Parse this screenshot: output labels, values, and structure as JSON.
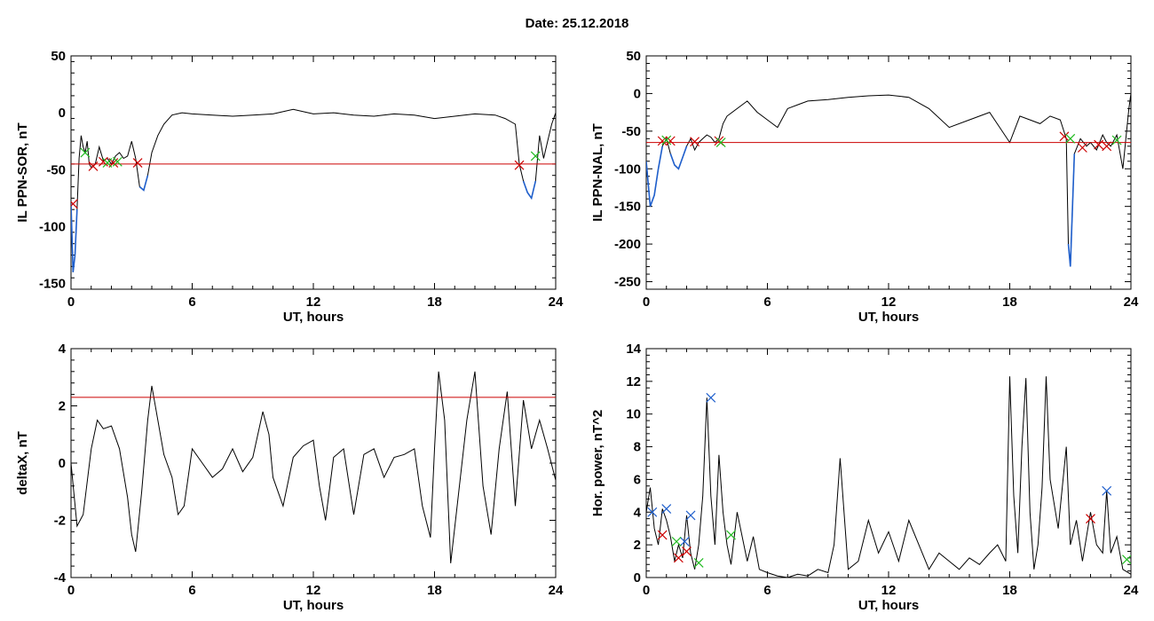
{
  "page_title": "Date:  25.12.2018",
  "chart_data": [
    {
      "type": "line",
      "id": "ppn_sor",
      "xlabel": "UT, hours",
      "ylabel": "IL PPN-SOR, nT",
      "xlim": [
        0,
        24
      ],
      "ylim": [
        -155,
        50
      ],
      "xticks": [
        0,
        6,
        12,
        18,
        24
      ],
      "yticks": [
        -150,
        -100,
        -50,
        0,
        50
      ],
      "threshold": -45,
      "threshold_color": "#cc0000",
      "line_color": "#000000",
      "highlight_color": "#1f5fcc",
      "series": [
        {
          "values_x": [
            0,
            0.1,
            0.2,
            0.3,
            0.4,
            0.5,
            0.6,
            0.7,
            0.8,
            0.9,
            1.0,
            1.2,
            1.4,
            1.6,
            1.8,
            2.0,
            2.2,
            2.4,
            2.6,
            2.8,
            3.0,
            3.2,
            3.4,
            3.6,
            3.8,
            4.0,
            4.3,
            4.6,
            5.0,
            5.5,
            6,
            7,
            8,
            9,
            10,
            11,
            12,
            13,
            14,
            15,
            16,
            17,
            18,
            19,
            20,
            21,
            21.5,
            22,
            22.2,
            22.4,
            22.6,
            22.8,
            23.0,
            23.2,
            23.4,
            23.6,
            23.8,
            24
          ],
          "values": [
            -80,
            -140,
            -125,
            -85,
            -40,
            -20,
            -30,
            -35,
            -25,
            -45,
            -48,
            -45,
            -30,
            -42,
            -40,
            -45,
            -38,
            -35,
            -40,
            -38,
            -25,
            -40,
            -65,
            -68,
            -55,
            -35,
            -20,
            -10,
            -2,
            0,
            -1,
            -2,
            -3,
            -2,
            -1,
            3,
            -1,
            0,
            -2,
            -3,
            -1,
            -2,
            -5,
            -3,
            -1,
            -2,
            -5,
            -10,
            -45,
            -60,
            -70,
            -75,
            -60,
            -20,
            -40,
            -25,
            -10,
            0
          ]
        }
      ],
      "markers": [
        {
          "x": 0.1,
          "y": -80,
          "color": "#cc0000"
        },
        {
          "x": 1.1,
          "y": -47,
          "color": "#cc0000"
        },
        {
          "x": 1.6,
          "y": -43,
          "color": "#cc0000"
        },
        {
          "x": 2.1,
          "y": -44,
          "color": "#cc0000"
        },
        {
          "x": 3.3,
          "y": -44,
          "color": "#cc0000"
        },
        {
          "x": 22.2,
          "y": -46,
          "color": "#cc0000"
        },
        {
          "x": 0.7,
          "y": -35,
          "color": "#22bb22"
        },
        {
          "x": 1.8,
          "y": -44,
          "color": "#22bb22"
        },
        {
          "x": 2.3,
          "y": -43,
          "color": "#22bb22"
        },
        {
          "x": 23.0,
          "y": -38,
          "color": "#22bb22"
        }
      ]
    },
    {
      "type": "line",
      "id": "ppn_nal",
      "xlabel": "UT, hours",
      "ylabel": "IL PPN-NAL, nT",
      "xlim": [
        0,
        24
      ],
      "ylim": [
        -260,
        50
      ],
      "xticks": [
        0,
        6,
        12,
        18,
        24
      ],
      "yticks": [
        -250,
        -200,
        -150,
        -100,
        -50,
        0,
        50
      ],
      "threshold": -65,
      "threshold_color": "#cc0000",
      "line_color": "#000000",
      "highlight_color": "#1f5fcc",
      "series": [
        {
          "values_x": [
            0,
            0.2,
            0.4,
            0.6,
            0.8,
            1.0,
            1.2,
            1.4,
            1.6,
            1.8,
            2.0,
            2.2,
            2.4,
            2.6,
            2.8,
            3.0,
            3.2,
            3.4,
            3.6,
            3.8,
            4.0,
            4.5,
            5.0,
            5.5,
            6.0,
            6.5,
            7.0,
            7.5,
            8,
            9,
            10,
            11,
            12,
            13,
            14,
            15,
            16,
            17,
            18,
            18.5,
            19,
            19.5,
            20,
            20.5,
            20.8,
            20.9,
            21.0,
            21.2,
            21.5,
            21.8,
            22.0,
            22.3,
            22.6,
            22.8,
            23.0,
            23.3,
            23.6,
            23.9,
            24
          ],
          "values": [
            -90,
            -150,
            -135,
            -100,
            -70,
            -60,
            -80,
            -95,
            -100,
            -85,
            -70,
            -60,
            -75,
            -65,
            -60,
            -55,
            -58,
            -65,
            -60,
            -40,
            -30,
            -20,
            -10,
            -25,
            -35,
            -45,
            -20,
            -15,
            -10,
            -8,
            -5,
            -3,
            -2,
            -5,
            -20,
            -45,
            -35,
            -25,
            -65,
            -30,
            -35,
            -40,
            -30,
            -35,
            -60,
            -200,
            -230,
            -80,
            -60,
            -70,
            -65,
            -75,
            -55,
            -65,
            -70,
            -55,
            -100,
            -20,
            0
          ]
        }
      ],
      "markers": [
        {
          "x": 0.8,
          "y": -63,
          "color": "#cc0000"
        },
        {
          "x": 1.2,
          "y": -63,
          "color": "#cc0000"
        },
        {
          "x": 2.4,
          "y": -64,
          "color": "#cc0000"
        },
        {
          "x": 3.6,
          "y": -63,
          "color": "#cc0000"
        },
        {
          "x": 20.7,
          "y": -57,
          "color": "#cc0000"
        },
        {
          "x": 21.6,
          "y": -72,
          "color": "#cc0000"
        },
        {
          "x": 22.4,
          "y": -68,
          "color": "#cc0000"
        },
        {
          "x": 22.8,
          "y": -70,
          "color": "#cc0000"
        },
        {
          "x": 1.0,
          "y": -62,
          "color": "#22bb22"
        },
        {
          "x": 3.7,
          "y": -65,
          "color": "#22bb22"
        },
        {
          "x": 21.0,
          "y": -60,
          "color": "#22bb22"
        },
        {
          "x": 23.3,
          "y": -62,
          "color": "#22bb22"
        }
      ]
    },
    {
      "type": "line",
      "id": "deltax",
      "xlabel": "UT, hours",
      "ylabel": "deltaX, nT",
      "xlim": [
        0,
        24
      ],
      "ylim": [
        -4,
        4
      ],
      "xticks": [
        0,
        6,
        12,
        18,
        24
      ],
      "yticks": [
        -4,
        -2,
        0,
        2,
        4
      ],
      "threshold": 2.3,
      "threshold_color": "#cc0000",
      "line_color": "#000000",
      "series": [
        {
          "values_x": [
            0,
            0.3,
            0.6,
            1.0,
            1.3,
            1.6,
            2.0,
            2.4,
            2.8,
            3.0,
            3.2,
            3.5,
            3.8,
            4.0,
            4.3,
            4.6,
            5.0,
            5.3,
            5.6,
            6.0,
            6.5,
            7.0,
            7.5,
            8.0,
            8.5,
            9.0,
            9.5,
            9.8,
            10.0,
            10.5,
            11.0,
            11.5,
            12.0,
            12.3,
            12.6,
            13.0,
            13.5,
            14.0,
            14.5,
            15.0,
            15.5,
            16.0,
            16.5,
            17.0,
            17.4,
            17.8,
            18.0,
            18.2,
            18.5,
            18.8,
            19.2,
            19.6,
            20.0,
            20.4,
            20.8,
            21.2,
            21.6,
            22.0,
            22.4,
            22.8,
            23.2,
            23.6,
            24
          ],
          "values": [
            0,
            -2.2,
            -1.8,
            0.5,
            1.5,
            1.2,
            1.3,
            0.5,
            -1.2,
            -2.5,
            -3.1,
            -1.0,
            1.5,
            2.7,
            1.5,
            0.3,
            -0.5,
            -1.8,
            -1.5,
            0.5,
            0,
            -0.5,
            -0.2,
            0.5,
            -0.3,
            0.2,
            1.8,
            1.0,
            -0.5,
            -1.5,
            0.2,
            0.6,
            0.8,
            -0.8,
            -2.0,
            0.2,
            0.5,
            -1.8,
            0.3,
            0.5,
            -0.5,
            0.2,
            0.3,
            0.5,
            -1.5,
            -2.6,
            0.5,
            3.2,
            1.5,
            -3.5,
            -1.0,
            1.5,
            3.2,
            -0.8,
            -2.5,
            0.5,
            2.5,
            -1.5,
            2.2,
            0.5,
            1.5,
            0.5,
            -0.6
          ]
        }
      ],
      "markers": []
    },
    {
      "type": "line",
      "id": "hor_power",
      "xlabel": "UT, hours",
      "ylabel": "Hor. power, nT^2",
      "xlim": [
        0,
        24
      ],
      "ylim": [
        0,
        14
      ],
      "xticks": [
        0,
        6,
        12,
        18,
        24
      ],
      "yticks": [
        0,
        2,
        4,
        6,
        8,
        10,
        12,
        14
      ],
      "threshold": null,
      "line_color": "#000000",
      "series": [
        {
          "values_x": [
            0,
            0.2,
            0.4,
            0.6,
            0.8,
            1.0,
            1.2,
            1.4,
            1.6,
            1.8,
            2.0,
            2.2,
            2.4,
            2.6,
            2.8,
            3.0,
            3.2,
            3.4,
            3.6,
            3.8,
            4.0,
            4.2,
            4.5,
            5.0,
            5.3,
            5.6,
            6.0,
            6.5,
            7.0,
            7.5,
            8.0,
            8.5,
            9.0,
            9.3,
            9.6,
            10.0,
            10.5,
            11.0,
            11.5,
            12.0,
            12.5,
            13.0,
            13.5,
            14.0,
            14.5,
            15.0,
            15.5,
            16.0,
            16.5,
            17.0,
            17.4,
            17.8,
            18.0,
            18.2,
            18.4,
            18.6,
            18.8,
            19.0,
            19.2,
            19.4,
            19.6,
            19.8,
            20.0,
            20.4,
            20.8,
            21.0,
            21.3,
            21.6,
            22.0,
            22.3,
            22.6,
            22.8,
            23.0,
            23.3,
            23.6,
            24
          ],
          "values": [
            4.0,
            5.5,
            3.0,
            2.0,
            4.2,
            3.5,
            2.5,
            1.0,
            2.0,
            1.2,
            3.8,
            1.5,
            0.5,
            2.0,
            5.0,
            11.0,
            5.0,
            2.0,
            7.5,
            4.0,
            2.0,
            0.8,
            4.0,
            1.0,
            2.5,
            0.5,
            0.3,
            0.1,
            0,
            0.2,
            0.1,
            0.5,
            0.3,
            2.0,
            7.3,
            0.5,
            1.0,
            3.5,
            1.5,
            2.8,
            1.0,
            3.5,
            2.0,
            0.5,
            1.5,
            1.0,
            0.5,
            1.2,
            0.8,
            1.5,
            2.0,
            1.0,
            12.3,
            5.0,
            1.5,
            8.0,
            12.2,
            4.0,
            0.5,
            2.0,
            5.5,
            12.3,
            6.0,
            3.0,
            8.0,
            2.0,
            3.5,
            1.0,
            4.0,
            2.0,
            1.5,
            5.3,
            1.5,
            2.5,
            0.5,
            0.2
          ]
        }
      ],
      "markers": [
        {
          "x": 0.3,
          "y": 4.0,
          "color": "#1f5fcc"
        },
        {
          "x": 1.0,
          "y": 4.2,
          "color": "#1f5fcc"
        },
        {
          "x": 1.9,
          "y": 2.2,
          "color": "#1f5fcc"
        },
        {
          "x": 2.2,
          "y": 3.8,
          "color": "#1f5fcc"
        },
        {
          "x": 3.2,
          "y": 11.0,
          "color": "#1f5fcc"
        },
        {
          "x": 22.8,
          "y": 5.3,
          "color": "#1f5fcc"
        },
        {
          "x": 0.8,
          "y": 2.6,
          "color": "#cc0000"
        },
        {
          "x": 1.6,
          "y": 1.2,
          "color": "#cc0000"
        },
        {
          "x": 2.0,
          "y": 1.6,
          "color": "#cc0000"
        },
        {
          "x": 22.0,
          "y": 3.6,
          "color": "#cc0000"
        },
        {
          "x": 1.5,
          "y": 2.2,
          "color": "#22bb22"
        },
        {
          "x": 2.6,
          "y": 0.9,
          "color": "#22bb22"
        },
        {
          "x": 4.2,
          "y": 2.6,
          "color": "#22bb22"
        },
        {
          "x": 23.8,
          "y": 1.1,
          "color": "#22bb22"
        }
      ]
    }
  ]
}
